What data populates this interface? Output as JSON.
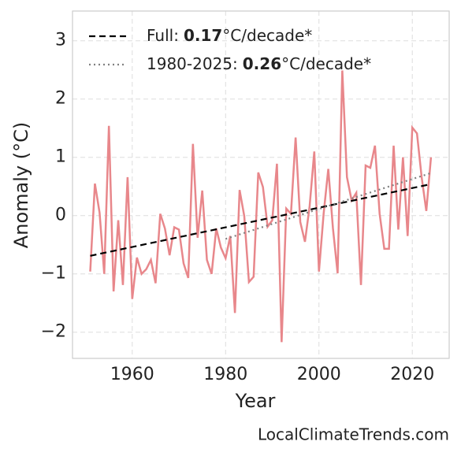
{
  "chart_data": {
    "type": "line",
    "xlabel": "Year",
    "ylabel": "Anomaly (°C)",
    "watermark": "LocalClimateTrends.com",
    "xlim": [
      1947.2,
      2027.9
    ],
    "ylim": [
      -2.45,
      3.51
    ],
    "xticks": [
      1960,
      1980,
      2000,
      2020
    ],
    "yticks": [
      {
        "value": -2,
        "label": "−2"
      },
      {
        "value": -1,
        "label": "−1"
      },
      0,
      1,
      2,
      3
    ],
    "grid": true,
    "legend": "upper left",
    "series": [
      {
        "color": "#e8878b",
        "x": [
          1951,
          1952,
          1953,
          1954,
          1955,
          1956,
          1957,
          1958,
          1959,
          1960,
          1961,
          1962,
          1963,
          1964,
          1965,
          1966,
          1967,
          1968,
          1969,
          1970,
          1971,
          1972,
          1973,
          1974,
          1975,
          1976,
          1977,
          1978,
          1979,
          1980,
          1981,
          1982,
          1983,
          1984,
          1985,
          1986,
          1987,
          1988,
          1989,
          1990,
          1991,
          1992,
          1993,
          1994,
          1995,
          1996,
          1997,
          1998,
          1999,
          2000,
          2001,
          2002,
          2003,
          2004,
          2005,
          2006,
          2007,
          2008,
          2009,
          2010,
          2011,
          2012,
          2013,
          2014,
          2015,
          2016,
          2017,
          2018,
          2019,
          2020,
          2021,
          2022,
          2023,
          2024
        ],
        "values": [
          -0.96,
          0.55,
          0.05,
          -1.0,
          1.54,
          -1.3,
          -0.08,
          -1.19,
          0.66,
          -1.43,
          -0.72,
          -1.0,
          -0.92,
          -0.76,
          -1.16,
          0.03,
          -0.22,
          -0.68,
          -0.2,
          -0.24,
          -0.82,
          -1.07,
          1.23,
          -0.38,
          0.43,
          -0.76,
          -1.0,
          -0.22,
          -0.55,
          -0.73,
          -0.35,
          -1.67,
          0.44,
          -0.01,
          -1.14,
          -1.05,
          0.74,
          0.49,
          -0.19,
          -0.08,
          0.89,
          -2.17,
          0.12,
          0.03,
          1.34,
          -0.11,
          -0.45,
          0.16,
          1.1,
          -0.96,
          0.03,
          0.8,
          -0.22,
          -0.99,
          2.49,
          0.66,
          0.26,
          0.39,
          -1.19,
          0.86,
          0.82,
          1.2,
          0.03,
          -0.57,
          -0.57,
          1.2,
          -0.24,
          1.0,
          -0.35,
          1.51,
          1.41,
          0.66,
          0.08,
          1.0
        ]
      },
      {
        "name": "Full:",
        "rate": 0.17,
        "rate_unit": "°C/decade*",
        "color": "#000000",
        "dash": "8 5",
        "x": [
          1951,
          2024
        ],
        "values": [
          -0.69,
          0.54
        ]
      },
      {
        "name": "1980-2025:",
        "rate": 0.26,
        "rate_unit": "°C/decade*",
        "color": "#808080",
        "dash": "2 4",
        "x": [
          1980,
          2024
        ],
        "values": [
          -0.4,
          0.73
        ]
      }
    ]
  }
}
